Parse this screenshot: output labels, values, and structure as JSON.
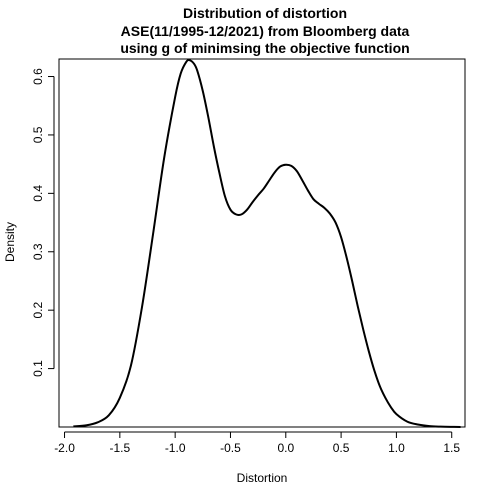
{
  "chart_data": {
    "type": "line",
    "title_lines": [
      "Distribution of distortion",
      "ASE(11/1995-12/2021) from Bloomberg data",
      "using g of minimsing the objective function"
    ],
    "xlabel": "Distortion",
    "ylabel": "Density",
    "xlim": [
      -2.05,
      1.62
    ],
    "ylim": [
      0.0,
      0.63
    ],
    "x_ticks": [
      -2.0,
      -1.5,
      -1.0,
      -0.5,
      0.0,
      0.5,
      1.0,
      1.5
    ],
    "x_tick_labels": [
      "-2.0",
      "-1.5",
      "-1.0",
      "-0.5",
      "0.0",
      "0.5",
      "1.0",
      "1.5"
    ],
    "y_ticks": [
      0.1,
      0.2,
      0.3,
      0.4,
      0.5,
      0.6
    ],
    "y_tick_labels": [
      "0.1",
      "0.2",
      "0.3",
      "0.4",
      "0.5",
      "0.6"
    ],
    "grid": false,
    "legend": "none",
    "series": [
      {
        "color": "#000000",
        "x": [
          -1.92,
          -1.8,
          -1.7,
          -1.6,
          -1.5,
          -1.4,
          -1.3,
          -1.2,
          -1.1,
          -1.0,
          -0.95,
          -0.9,
          -0.87,
          -0.83,
          -0.8,
          -0.75,
          -0.7,
          -0.65,
          -0.6,
          -0.55,
          -0.5,
          -0.45,
          -0.4,
          -0.35,
          -0.3,
          -0.25,
          -0.2,
          -0.15,
          -0.1,
          -0.05,
          0.0,
          0.05,
          0.1,
          0.15,
          0.2,
          0.25,
          0.3,
          0.35,
          0.4,
          0.45,
          0.5,
          0.55,
          0.6,
          0.65,
          0.7,
          0.75,
          0.8,
          0.85,
          0.9,
          0.95,
          1.0,
          1.1,
          1.2,
          1.3,
          1.4,
          1.5,
          1.58
        ],
        "y": [
          0.001,
          0.003,
          0.008,
          0.02,
          0.05,
          0.105,
          0.205,
          0.33,
          0.46,
          0.565,
          0.605,
          0.625,
          0.628,
          0.622,
          0.61,
          0.575,
          0.53,
          0.48,
          0.435,
          0.395,
          0.372,
          0.364,
          0.364,
          0.372,
          0.385,
          0.397,
          0.408,
          0.422,
          0.436,
          0.446,
          0.449,
          0.447,
          0.438,
          0.422,
          0.405,
          0.39,
          0.382,
          0.375,
          0.365,
          0.35,
          0.325,
          0.29,
          0.25,
          0.207,
          0.167,
          0.13,
          0.097,
          0.07,
          0.05,
          0.034,
          0.022,
          0.009,
          0.004,
          0.0015,
          0.0006,
          0.0002,
          0.0001
        ]
      }
    ]
  }
}
